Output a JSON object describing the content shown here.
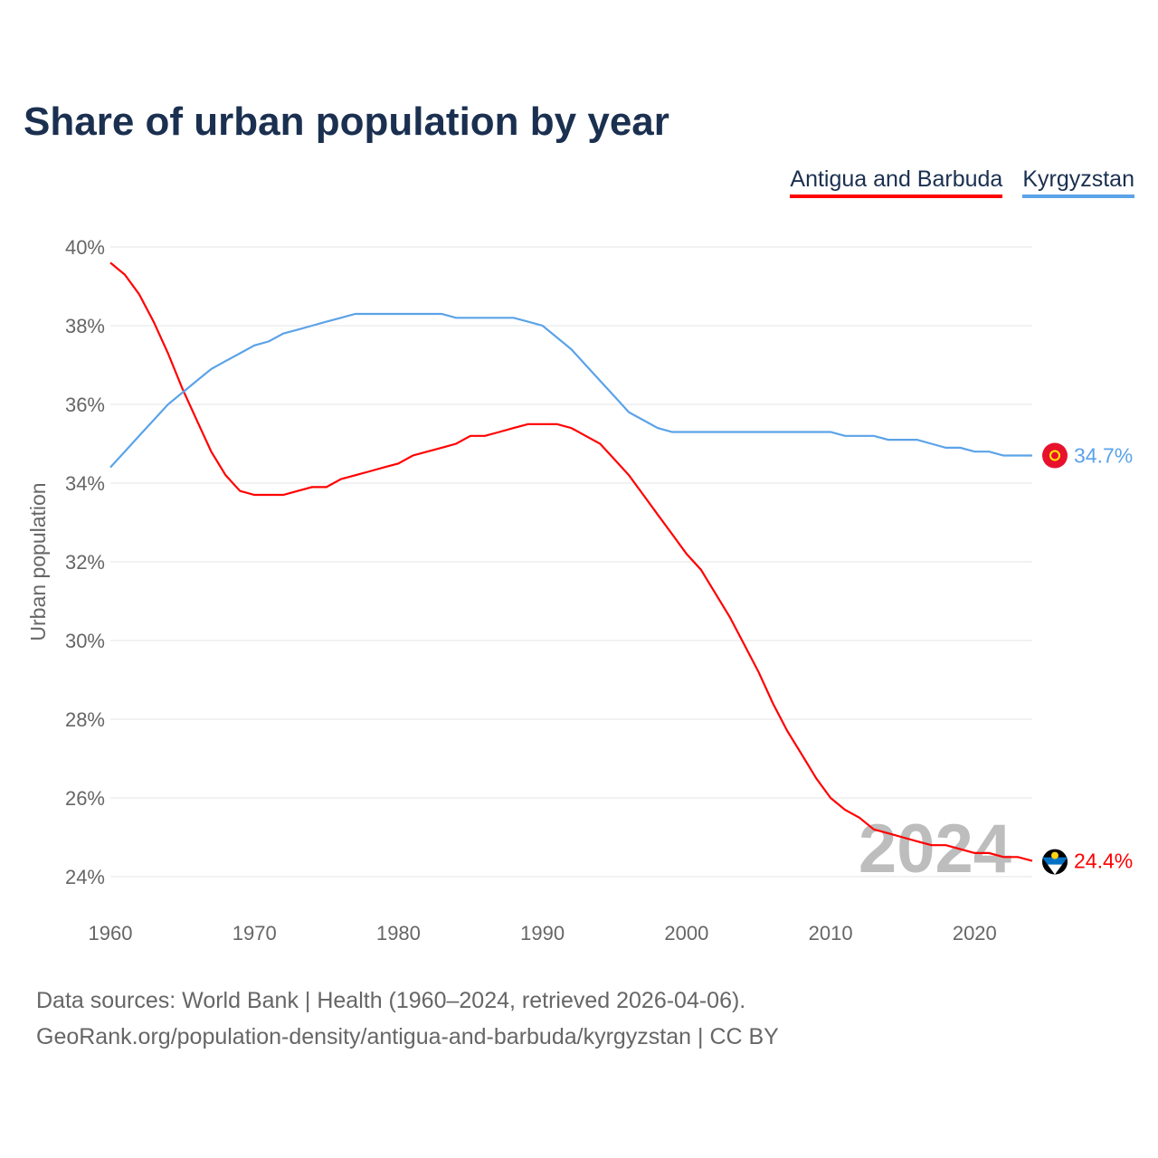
{
  "title": "Share of urban population by year",
  "legend": [
    {
      "label": "Antigua and Barbuda",
      "color": "#ff0000"
    },
    {
      "label": "Kyrgyzstan",
      "color": "#5ba3e8"
    }
  ],
  "footer": {
    "line1": "Data sources: World Bank | Health (1960–2024, retrieved 2026-04-06).",
    "line2": "GeoRank.org/population-density/antigua-and-barbuda/kyrgyzstan | CC BY"
  },
  "chart_data": {
    "type": "line",
    "title": "Share of urban population by year",
    "xlabel": "",
    "ylabel": "Urban population",
    "xlim": [
      1960,
      2024
    ],
    "ylim": [
      24,
      40
    ],
    "x_ticks": [
      "1960",
      "1970",
      "1980",
      "1990",
      "2000",
      "2010",
      "2020"
    ],
    "y_ticks": [
      "24%",
      "26%",
      "28%",
      "30%",
      "32%",
      "34%",
      "36%",
      "38%",
      "40%"
    ],
    "year_watermark": "2024",
    "x": [
      1960,
      1961,
      1962,
      1963,
      1964,
      1965,
      1966,
      1967,
      1968,
      1969,
      1970,
      1971,
      1972,
      1973,
      1974,
      1975,
      1976,
      1977,
      1978,
      1979,
      1980,
      1981,
      1982,
      1983,
      1984,
      1985,
      1986,
      1987,
      1988,
      1989,
      1990,
      1991,
      1992,
      1993,
      1994,
      1995,
      1996,
      1997,
      1998,
      1999,
      2000,
      2001,
      2002,
      2003,
      2004,
      2005,
      2006,
      2007,
      2008,
      2009,
      2010,
      2011,
      2012,
      2013,
      2014,
      2015,
      2016,
      2017,
      2018,
      2019,
      2020,
      2021,
      2022,
      2023,
      2024
    ],
    "series": [
      {
        "name": "Antigua and Barbuda",
        "color": "#ff0000",
        "end_label": "24.4%",
        "values": [
          39.6,
          39.3,
          38.8,
          38.1,
          37.3,
          36.4,
          35.6,
          34.8,
          34.2,
          33.8,
          33.7,
          33.7,
          33.7,
          33.8,
          33.9,
          33.9,
          34.1,
          34.2,
          34.3,
          34.4,
          34.5,
          34.7,
          34.8,
          34.9,
          35.0,
          35.2,
          35.2,
          35.3,
          35.4,
          35.5,
          35.5,
          35.5,
          35.4,
          35.2,
          35.0,
          34.6,
          34.2,
          33.7,
          33.2,
          32.7,
          32.2,
          31.8,
          31.2,
          30.6,
          29.9,
          29.2,
          28.4,
          27.7,
          27.1,
          26.5,
          26.0,
          25.7,
          25.5,
          25.2,
          25.1,
          25.0,
          24.9,
          24.8,
          24.8,
          24.7,
          24.6,
          24.6,
          24.5,
          24.5,
          24.4
        ]
      },
      {
        "name": "Kyrgyzstan",
        "color": "#5ba3e8",
        "end_label": "34.7%",
        "values": [
          34.4,
          34.8,
          35.2,
          35.6,
          36.0,
          36.3,
          36.6,
          36.9,
          37.1,
          37.3,
          37.5,
          37.6,
          37.8,
          37.9,
          38.0,
          38.1,
          38.2,
          38.3,
          38.3,
          38.3,
          38.3,
          38.3,
          38.3,
          38.3,
          38.2,
          38.2,
          38.2,
          38.2,
          38.2,
          38.1,
          38.0,
          37.7,
          37.4,
          37.0,
          36.6,
          36.2,
          35.8,
          35.6,
          35.4,
          35.3,
          35.3,
          35.3,
          35.3,
          35.3,
          35.3,
          35.3,
          35.3,
          35.3,
          35.3,
          35.3,
          35.3,
          35.2,
          35.2,
          35.2,
          35.1,
          35.1,
          35.1,
          35.0,
          34.9,
          34.9,
          34.8,
          34.8,
          34.7,
          34.7,
          34.7
        ]
      }
    ]
  }
}
